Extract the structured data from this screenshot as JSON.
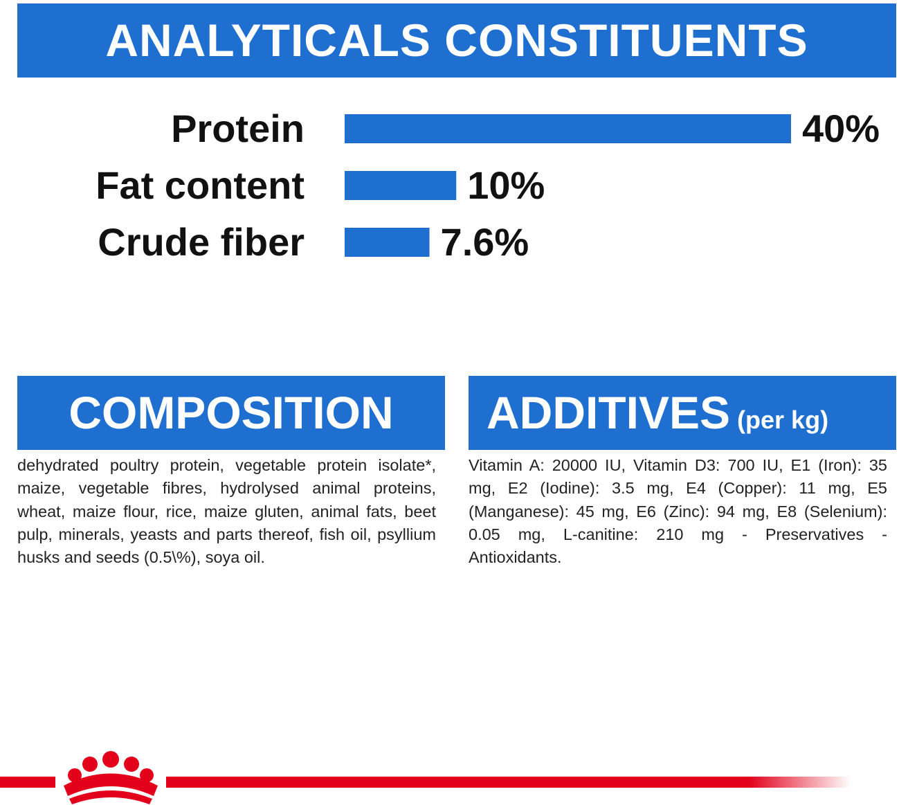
{
  "chart_data": {
    "type": "bar",
    "orientation": "horizontal",
    "title": "ANALYTICALS CONSTITUENTS",
    "categories": [
      "Protein",
      "Fat content",
      "Crude fiber"
    ],
    "values": [
      40,
      10,
      7.6
    ],
    "value_labels": [
      "40%",
      "10%",
      "7.6%"
    ],
    "color": "#1f6fd0",
    "xlim": [
      0,
      40
    ]
  },
  "composition": {
    "title": "COMPOSITION",
    "text": "dehydrated poultry protein, vegetable protein isolate*, maize, vegetable fibres, hydrolysed animal proteins, wheat, maize flour, rice, maize gluten, animal fats, beet pulp, minerals, yeasts and parts thereof, fish oil, psyllium husks and seeds (0.5\\%), soya oil."
  },
  "additives": {
    "title": "ADDITIVES",
    "subtitle": "(per kg)",
    "text": "Vitamin A: 20000 IU, Vitamin D3: 700 IU, E1 (Iron): 35 mg, E2 (Iodine): 3.5 mg, E4 (Copper): 11 mg, E5 (Manganese): 45 mg, E6 (Zinc): 94 mg, E8 (Selenium): 0.05 mg, L-canitine: 210 mg - Preservatives - Antioxidants."
  }
}
